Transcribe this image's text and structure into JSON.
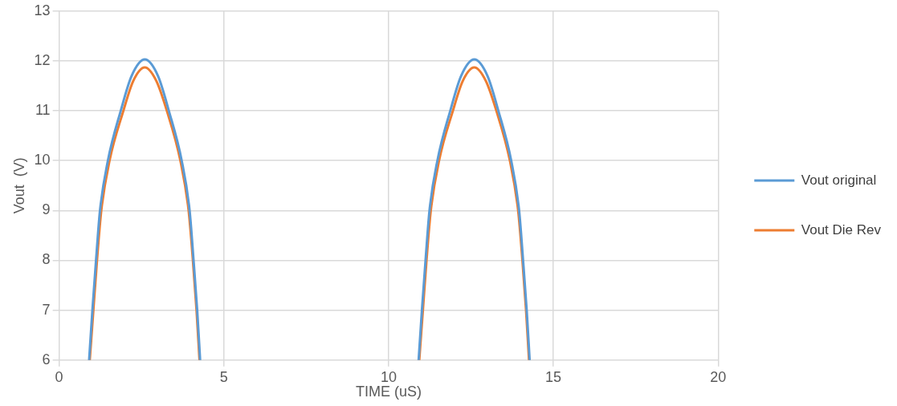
{
  "chart_data": {
    "type": "line",
    "xlabel": "TIME (uS)",
    "ylabel": "Vout  (V)",
    "xlim": [
      0,
      20
    ],
    "xticks": [
      0,
      5,
      10,
      15,
      20
    ],
    "ylim": [
      6,
      13
    ],
    "yticks": [
      6,
      7,
      8,
      9,
      10,
      11,
      12,
      13
    ],
    "grid": true,
    "legend": "right",
    "marker": "none",
    "line_style": "solid",
    "series": [
      {
        "name": "Vout original",
        "color": "#5b9bd5",
        "x": [
          0.91,
          1.01,
          1.12,
          1.24,
          1.48,
          1.87,
          2.2,
          2.6,
          3.0,
          3.33,
          3.72,
          3.96,
          4.08,
          4.19,
          4.28,
          7.5,
          10.91,
          11.01,
          11.12,
          11.24,
          11.48,
          11.87,
          12.2,
          12.6,
          13.0,
          13.33,
          13.72,
          13.96,
          14.08,
          14.19,
          14.28
        ],
        "values": [
          6,
          7,
          8,
          9,
          10,
          11,
          11.7,
          12.03,
          11.7,
          11,
          10,
          9,
          8,
          7,
          6,
          null,
          6,
          7,
          8,
          9,
          10,
          11,
          11.7,
          12.03,
          11.7,
          11,
          10,
          9,
          8,
          7,
          6
        ]
      },
      {
        "name": "Vout Die Rev",
        "color": "#ed7d31",
        "x": [
          0.93,
          1.04,
          1.15,
          1.28,
          1.53,
          1.95,
          2.25,
          2.6,
          2.95,
          3.27,
          3.68,
          3.93,
          4.06,
          4.17,
          4.26,
          7.5,
          10.93,
          11.04,
          11.15,
          11.28,
          11.53,
          11.95,
          12.25,
          12.6,
          12.95,
          13.27,
          13.68,
          13.93,
          14.06,
          14.17,
          14.26
        ],
        "values": [
          6,
          7,
          8,
          9,
          10,
          11,
          11.6,
          11.87,
          11.6,
          11,
          10,
          9,
          8,
          7,
          6,
          null,
          6,
          7,
          8,
          9,
          10,
          11,
          11.6,
          11.87,
          11.6,
          11,
          10,
          9,
          8,
          7,
          6
        ]
      }
    ]
  }
}
